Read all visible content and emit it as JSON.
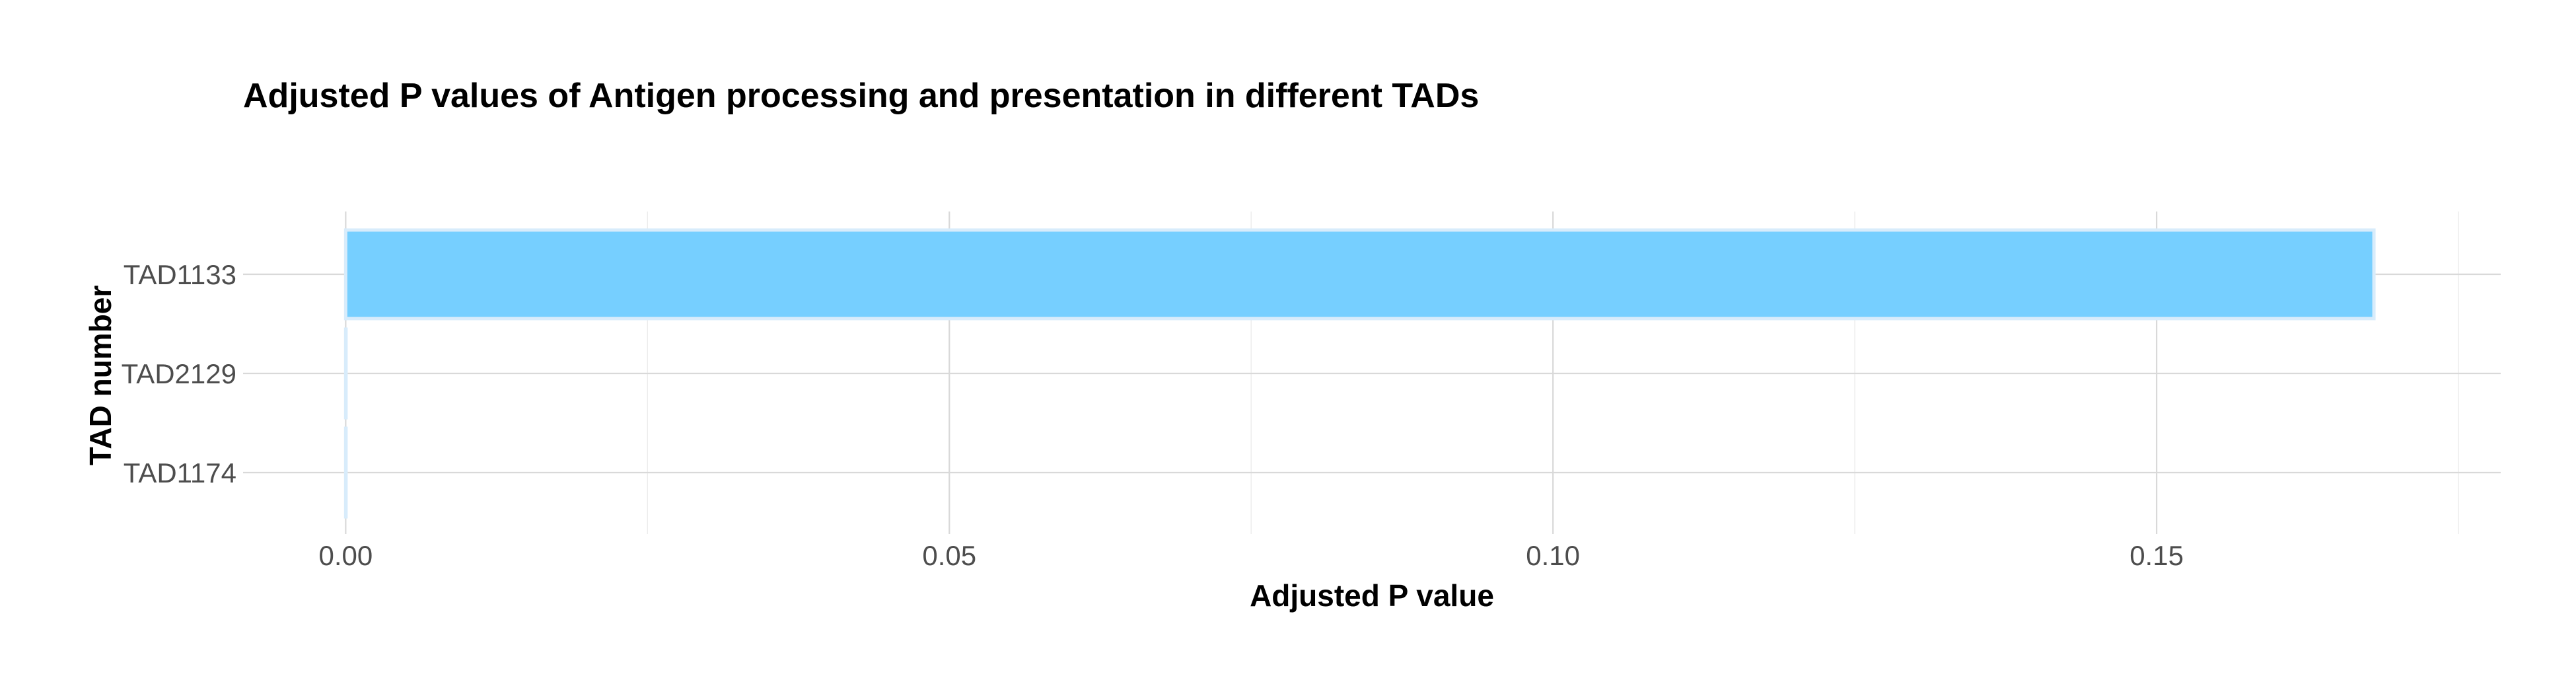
{
  "chart_data": {
    "type": "bar",
    "orientation": "horizontal",
    "title": "Adjusted P values of Antigen processing and presentation in different TADs",
    "xlabel": "Adjusted P value",
    "ylabel": "TAD number",
    "categories": [
      "TAD1133",
      "TAD2129",
      "TAD1174"
    ],
    "values": [
      0.168,
      0.0,
      0.0
    ],
    "xlim": [
      -0.0085,
      0.1785
    ],
    "xticks": [
      0.0,
      0.05,
      0.1,
      0.15
    ],
    "xtick_labels": [
      "0.00",
      "0.05",
      "0.10",
      "0.15"
    ],
    "grid": true,
    "legend": "none",
    "colors": {
      "bar_fill": "#76cfff",
      "bar_outline": "#d8ecfb",
      "grid_major": "#d9d9d9",
      "grid_minor": "#ececec"
    }
  }
}
